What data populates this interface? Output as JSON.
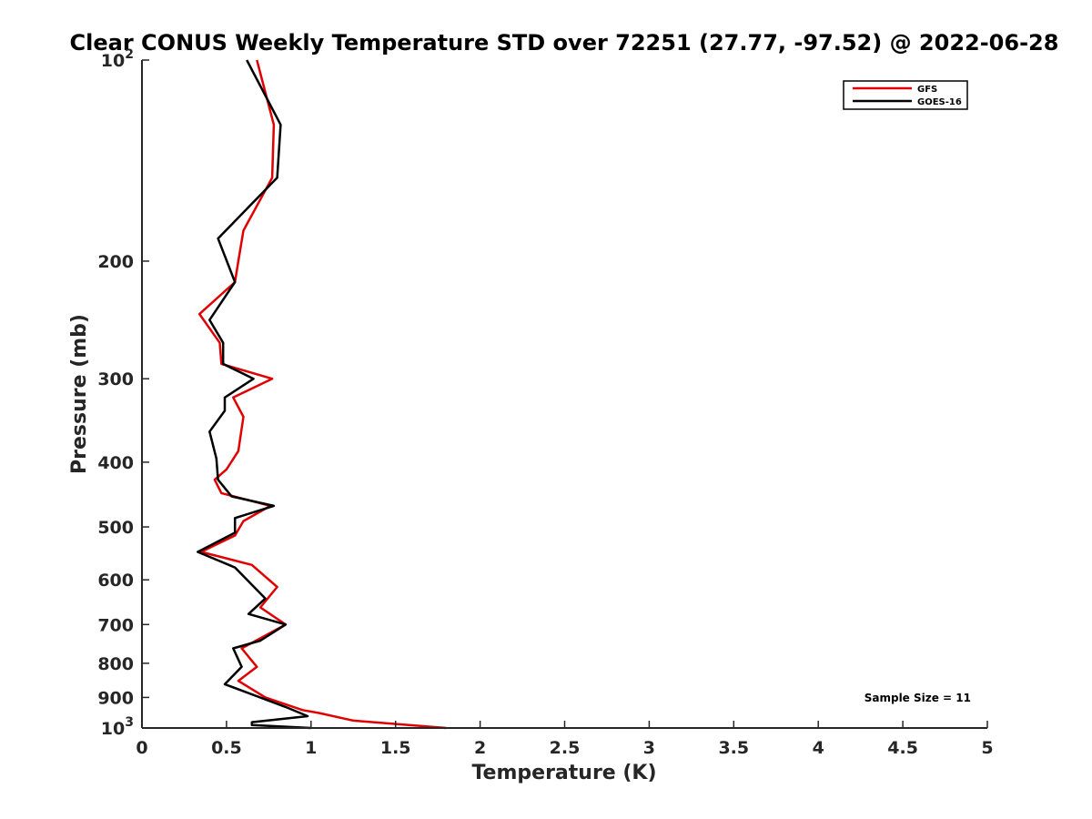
{
  "chart_data": {
    "type": "line",
    "title": "Clear CONUS Weekly Temperature STD over 72251 (27.77, -97.52) @ 2022-06-28",
    "xlabel": "Temperature (K)",
    "ylabel": "Pressure (mb)",
    "xlim": [
      0,
      5
    ],
    "ylim": [
      100,
      1000
    ],
    "y_scale": "log",
    "y_reversed": true,
    "grid": false,
    "legend_position": "top-right",
    "x_ticks": [
      {
        "value": 0,
        "label": "0"
      },
      {
        "value": 0.5,
        "label": "0.5"
      },
      {
        "value": 1,
        "label": "1"
      },
      {
        "value": 1.5,
        "label": "1.5"
      },
      {
        "value": 2,
        "label": "2"
      },
      {
        "value": 2.5,
        "label": "2.5"
      },
      {
        "value": 3,
        "label": "3"
      },
      {
        "value": 3.5,
        "label": "3.5"
      },
      {
        "value": 4,
        "label": "4"
      },
      {
        "value": 4.5,
        "label": "4.5"
      },
      {
        "value": 5,
        "label": "5"
      }
    ],
    "y_ticks": [
      {
        "value": 100,
        "base": "10",
        "exp": "2"
      },
      {
        "value": 200,
        "label": "200"
      },
      {
        "value": 300,
        "label": "300"
      },
      {
        "value": 400,
        "label": "400"
      },
      {
        "value": 500,
        "label": "500"
      },
      {
        "value": 600,
        "label": "600"
      },
      {
        "value": 700,
        "label": "700"
      },
      {
        "value": 800,
        "label": "800"
      },
      {
        "value": 900,
        "label": "900"
      },
      {
        "value": 1000,
        "base": "10",
        "exp": "3"
      }
    ],
    "annotation": "Sample Size = 11",
    "series": [
      {
        "name": "GFS",
        "color": "#e00000",
        "points": [
          [
            0.68,
            100
          ],
          [
            0.78,
            125
          ],
          [
            0.77,
            150
          ],
          [
            0.6,
            180
          ],
          [
            0.57,
            200
          ],
          [
            0.55,
            215
          ],
          [
            0.34,
            240
          ],
          [
            0.46,
            265
          ],
          [
            0.47,
            285
          ],
          [
            0.77,
            300
          ],
          [
            0.54,
            320
          ],
          [
            0.6,
            342
          ],
          [
            0.57,
            385
          ],
          [
            0.5,
            410
          ],
          [
            0.43,
            425
          ],
          [
            0.47,
            445
          ],
          [
            0.76,
            465
          ],
          [
            0.6,
            490
          ],
          [
            0.55,
            515
          ],
          [
            0.35,
            545
          ],
          [
            0.65,
            570
          ],
          [
            0.8,
            615
          ],
          [
            0.7,
            660
          ],
          [
            0.85,
            700
          ],
          [
            0.59,
            760
          ],
          [
            0.68,
            810
          ],
          [
            0.57,
            850
          ],
          [
            0.73,
            900
          ],
          [
            0.95,
            940
          ],
          [
            1.05,
            950
          ],
          [
            1.25,
            975
          ],
          [
            1.8,
            1000
          ]
        ]
      },
      {
        "name": "GOES-16",
        "color": "#000000",
        "points": [
          [
            0.62,
            100
          ],
          [
            0.82,
            125
          ],
          [
            0.8,
            150
          ],
          [
            0.45,
            185
          ],
          [
            0.55,
            215
          ],
          [
            0.4,
            245
          ],
          [
            0.48,
            265
          ],
          [
            0.48,
            285
          ],
          [
            0.66,
            300
          ],
          [
            0.49,
            320
          ],
          [
            0.49,
            335
          ],
          [
            0.4,
            360
          ],
          [
            0.44,
            395
          ],
          [
            0.45,
            425
          ],
          [
            0.53,
            450
          ],
          [
            0.78,
            465
          ],
          [
            0.55,
            485
          ],
          [
            0.55,
            510
          ],
          [
            0.33,
            545
          ],
          [
            0.55,
            575
          ],
          [
            0.73,
            640
          ],
          [
            0.63,
            675
          ],
          [
            0.85,
            700
          ],
          [
            0.7,
            740
          ],
          [
            0.54,
            760
          ],
          [
            0.59,
            810
          ],
          [
            0.49,
            860
          ],
          [
            0.85,
            930
          ],
          [
            0.98,
            960
          ],
          [
            0.65,
            980
          ],
          [
            0.65,
            990
          ],
          [
            1.0,
            1000
          ]
        ]
      }
    ]
  }
}
